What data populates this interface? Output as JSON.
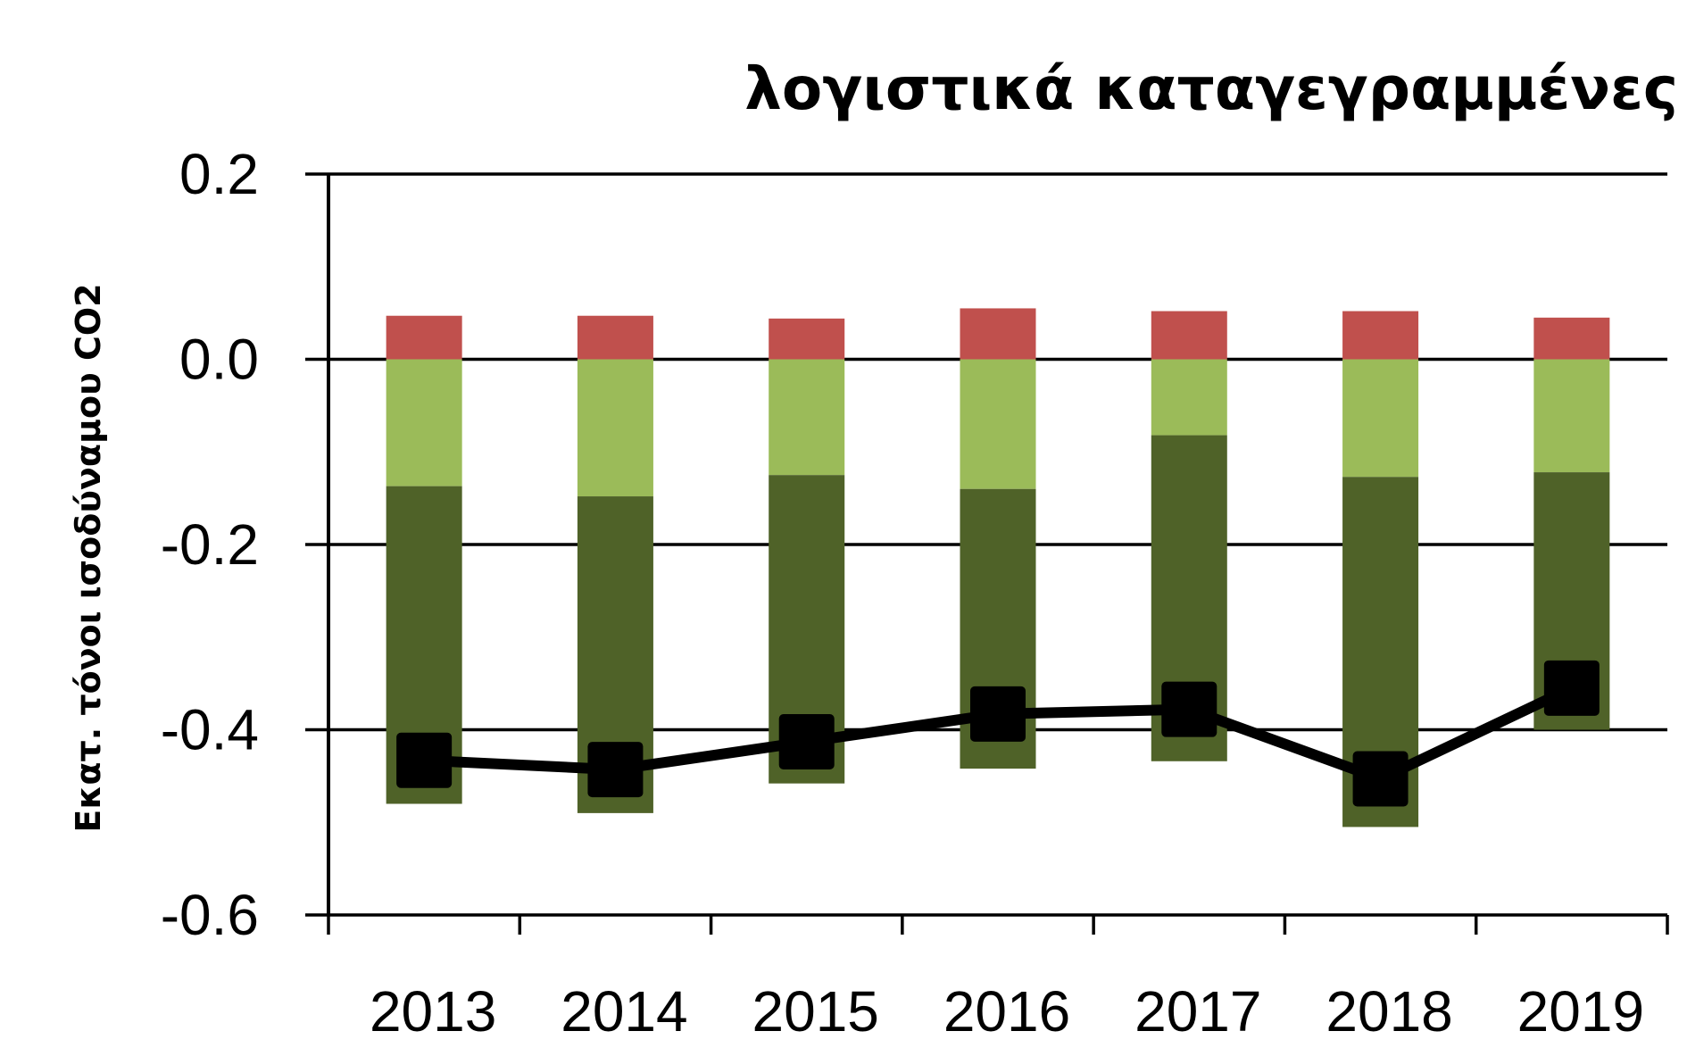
{
  "chart_data": {
    "type": "bar",
    "stacked": true,
    "title": "λογιστικά καταγεγραμμένες",
    "xlabel": "",
    "ylabel": "Εκατ. τόνοι ισοδύναμου CO2",
    "ylim": [
      -0.6,
      0.2
    ],
    "yticks": [
      "0.2",
      "0.0",
      "-0.2",
      "-0.4",
      "-0.6"
    ],
    "ytick_values": [
      0.2,
      0.0,
      -0.2,
      -0.4,
      -0.6
    ],
    "grid": true,
    "legend": "none",
    "categories": [
      "2013",
      "2014",
      "2015",
      "2016",
      "2017",
      "2018",
      "2019"
    ],
    "series": [
      {
        "type": "bar",
        "color": "#c0504d",
        "values": [
          0.047,
          0.047,
          0.044,
          0.055,
          0.052,
          0.052,
          0.045
        ]
      },
      {
        "type": "bar",
        "color": "#9bbb59",
        "values": [
          -0.137,
          -0.148,
          -0.125,
          -0.14,
          -0.082,
          -0.127,
          -0.122
        ]
      },
      {
        "type": "bar",
        "color": "#4f6228",
        "values": [
          -0.343,
          -0.342,
          -0.333,
          -0.302,
          -0.352,
          -0.378,
          -0.278
        ]
      },
      {
        "type": "line",
        "color": "#000000",
        "marker": "square",
        "values": [
          -0.433,
          -0.443,
          -0.413,
          -0.383,
          -0.378,
          -0.453,
          -0.355
        ]
      }
    ]
  }
}
